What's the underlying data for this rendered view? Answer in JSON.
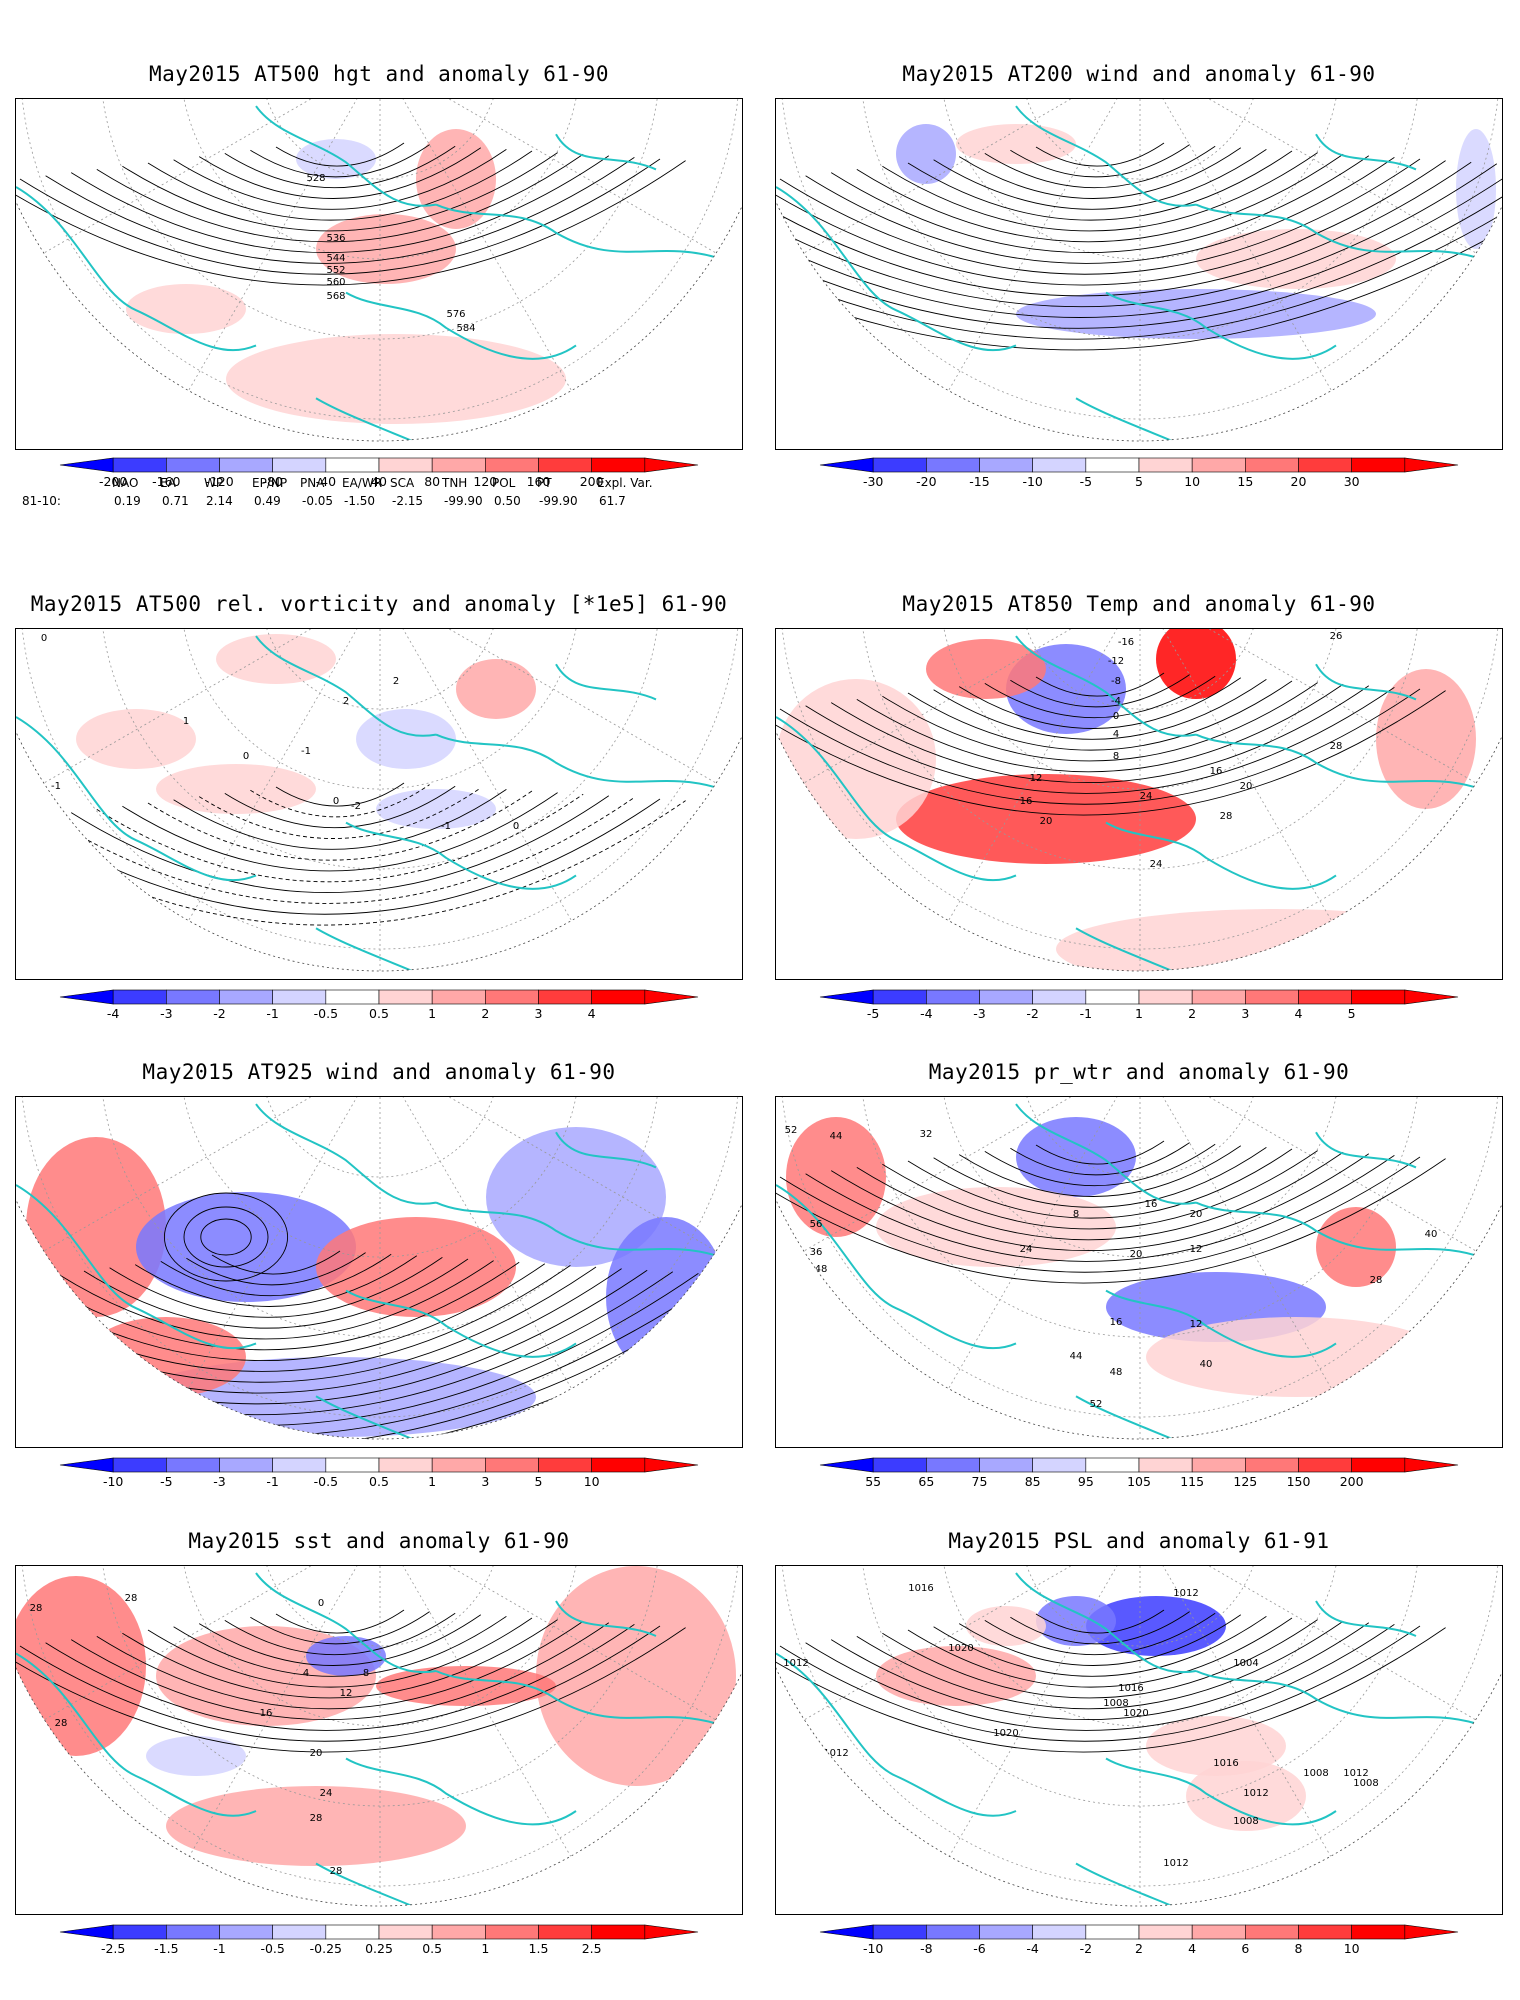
{
  "panels": [
    {
      "id": "p1",
      "title": "May2015 AT500 hgt and anomaly 61-90",
      "colorbar": [
        "-200",
        "-160",
        "-120",
        "-80",
        "-40",
        "40",
        "80",
        "120",
        "160",
        "200"
      ],
      "contour_labels": [
        "528",
        "536",
        "544",
        "552",
        "560",
        "568",
        "576",
        "584"
      ]
    },
    {
      "id": "p2",
      "title": "May2015 AT200 wind and anomaly 61-90",
      "colorbar": [
        "-30",
        "-20",
        "-15",
        "-10",
        "-5",
        "5",
        "10",
        "15",
        "20",
        "30"
      ],
      "contour_labels": []
    },
    {
      "id": "p3",
      "title": "May2015 AT500 rel. vorticity and anomaly [*1e5] 61-90",
      "colorbar": [
        "-4",
        "-3",
        "-2",
        "-1",
        "-0.5",
        "0.5",
        "1",
        "2",
        "3",
        "4"
      ],
      "contour_labels": [
        "0",
        "0",
        "0",
        "0",
        "-1",
        "-1",
        "-1",
        "1",
        "2",
        "-2",
        "2"
      ]
    },
    {
      "id": "p4",
      "title": "May2015 AT850 Temp and anomaly 61-90",
      "colorbar": [
        "-5",
        "-4",
        "-3",
        "-2",
        "-1",
        "1",
        "2",
        "3",
        "4",
        "5"
      ],
      "contour_labels": [
        "-16",
        "-12",
        "-8",
        "-4",
        "0",
        "4",
        "8",
        "12",
        "16",
        "20",
        "24",
        "28",
        "20",
        "24",
        "16",
        "20",
        "26",
        "28"
      ]
    },
    {
      "id": "p5",
      "title": "May2015 AT925 wind and anomaly 61-90",
      "colorbar": [
        "-10",
        "-5",
        "-3",
        "-1",
        "-0.5",
        "0.5",
        "1",
        "3",
        "5",
        "10"
      ],
      "contour_labels": []
    },
    {
      "id": "p6",
      "title": "May2015 pr_wtr and anomaly 61-90",
      "colorbar": [
        "55",
        "65",
        "75",
        "85",
        "95",
        "105",
        "115",
        "125",
        "150",
        "200"
      ],
      "contour_labels": [
        "52",
        "44",
        "32",
        "8",
        "16",
        "20",
        "12",
        "24",
        "40",
        "56",
        "48",
        "36",
        "20",
        "16",
        "12",
        "28",
        "44",
        "48",
        "52",
        "40"
      ]
    },
    {
      "id": "p7",
      "title": "May2015 sst and anomaly 61-90",
      "colorbar": [
        "-2.5",
        "-1.5",
        "-1",
        "-0.5",
        "-0.25",
        "0.25",
        "0.5",
        "1",
        "1.5",
        "2.5"
      ],
      "contour_labels": [
        "28",
        "28",
        "28",
        "0",
        "4",
        "8",
        "12",
        "16",
        "20",
        "24",
        "28",
        "28"
      ]
    },
    {
      "id": "p8",
      "title": "May2015 PSL and anomaly 61-91",
      "colorbar": [
        "-10",
        "-8",
        "-6",
        "-4",
        "-2",
        "2",
        "4",
        "6",
        "8",
        "10"
      ],
      "contour_labels": [
        "1016",
        "1020",
        "1012",
        "1008",
        "1016",
        "1020",
        "1012",
        "1004",
        "1012",
        "1020",
        "1016",
        "1012",
        "1008",
        "1008",
        "1012",
        "1008",
        "1012",
        "1008"
      ]
    }
  ],
  "teleconnections": {
    "headers": [
      "NAO",
      "EA",
      "WP",
      "EP/NP",
      "PNA",
      "EA/WR",
      "SCA",
      "TNH",
      "POL",
      "PT",
      "Expl. Var."
    ],
    "row_label": "81-10:",
    "values": [
      "0.19",
      "0.71",
      "2.14",
      "0.49",
      "-0.05",
      "-1.50",
      "-2.15",
      "-99.90",
      "0.50",
      "-99.90",
      "61.7"
    ]
  },
  "colors": {
    "coast": "#22c4c4",
    "contour": "#000000",
    "grid": "#999999",
    "scale": [
      "#0000ff",
      "#3c3cff",
      "#7878ff",
      "#a8a8ff",
      "#d4d4ff",
      "#ffffff",
      "#ffd4d4",
      "#ffa8a8",
      "#ff7878",
      "#ff3c3c",
      "#ff0000"
    ]
  }
}
